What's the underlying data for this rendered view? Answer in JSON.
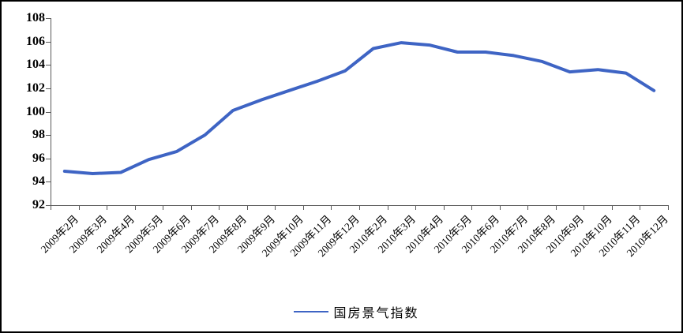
{
  "frame": {
    "background": "#ffffff",
    "border_color": "#000000",
    "axis_color": "#595959"
  },
  "chart_data": {
    "type": "line",
    "title": "",
    "xlabel": "",
    "ylabel": "",
    "categories": [
      "2009年2月",
      "2009年3月",
      "2009年4月",
      "2009年5月",
      "2009年6月",
      "2009年7月",
      "2009年8月",
      "2009年9月",
      "2009年10月",
      "2009年11月",
      "2009年12月",
      "2010年2月",
      "2010年3月",
      "2010年4月",
      "2010年5月",
      "2010年6月",
      "2010年7月",
      "2010年8月",
      "2010年9月",
      "2010年10月",
      "2010年11月",
      "2010年12月"
    ],
    "series": [
      {
        "name": "国房景气指数",
        "color": "#3E64C4",
        "values": [
          94.9,
          94.7,
          94.8,
          95.9,
          96.6,
          98.0,
          100.1,
          101.0,
          101.8,
          102.6,
          103.5,
          105.4,
          105.9,
          105.7,
          105.1,
          105.1,
          104.8,
          104.3,
          103.4,
          103.6,
          103.3,
          101.8
        ]
      }
    ],
    "ylim": [
      92,
      108
    ],
    "ytick_step": 2,
    "yticks": [
      92,
      94,
      96,
      98,
      100,
      102,
      104,
      106,
      108
    ],
    "grid": false,
    "legend_position": "bottom"
  },
  "legend": {
    "label": "国房景气指数"
  }
}
